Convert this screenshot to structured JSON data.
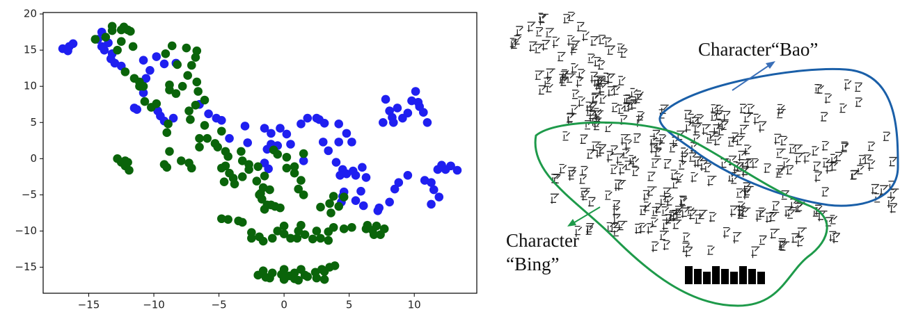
{
  "chart_data": {
    "type": "scatter",
    "xlim": [
      -18.5,
      14.8
    ],
    "ylim": [
      -18.6,
      20.2
    ],
    "xticks": [
      {
        "value": -15,
        "label": "−15"
      },
      {
        "value": -10,
        "label": "−10"
      },
      {
        "value": -5,
        "label": "−5"
      },
      0,
      5,
      10
    ],
    "yticks": [
      {
        "value": -15,
        "label": "−15"
      },
      {
        "value": -10,
        "label": "−10"
      },
      {
        "value": -5,
        "label": "−5"
      },
      0,
      5,
      10,
      15,
      20
    ],
    "series": [
      {
        "color": "#1f1ff0",
        "x": [
          -17,
          -16.5,
          -16.2,
          -16.6,
          -14,
          -14.3,
          -13.5,
          -13.8,
          -13.2,
          -13,
          -12.5,
          -13.3,
          -14,
          -10.8,
          -10.3,
          -10.6,
          -10.8,
          -9.8,
          -9.2,
          -8.3,
          -9.5,
          -9.7,
          -9.2,
          -8.5,
          -11.5,
          -11.3,
          -6.5,
          -5.8,
          -5.2,
          -4.8,
          -3,
          -1.5,
          -1,
          -0.5,
          -0.3,
          0.2,
          0.5,
          1.3,
          1.8,
          2.5,
          2.7,
          3.1,
          4.2,
          4.8,
          5.2,
          4.2,
          -1.3,
          -2.8,
          -1.5,
          -1.2,
          3,
          3.4,
          4,
          4.5,
          4.3,
          4.8,
          5.3,
          5.5,
          6,
          6.3,
          5.9,
          4.6,
          4.5,
          4.4,
          5.5,
          6.1,
          7.2,
          7.3,
          8.1,
          8.5,
          8.8,
          9.5,
          10.8,
          11.3,
          11.5,
          11.9,
          11.3,
          12.1,
          12.4,
          12.8,
          13.3,
          11.8,
          7.8,
          8.1,
          8.7,
          8.3,
          7.6,
          8.4,
          9.1,
          9.8,
          10.1,
          10.3,
          10.7,
          11,
          9.5,
          10.4,
          -1,
          1.5,
          -4.2
        ],
        "y": [
          15.2,
          15.5,
          15.9,
          14.9,
          17.5,
          16.5,
          16,
          15,
          14.5,
          13.2,
          12.8,
          13.8,
          15.5,
          13.6,
          12.2,
          11.1,
          9.1,
          14.1,
          13.1,
          13.2,
          5.9,
          6.6,
          5.2,
          5.6,
          7,
          6.8,
          7.5,
          6.2,
          5.6,
          5.3,
          4.5,
          4.2,
          3.5,
          1.8,
          4.2,
          3.4,
          2,
          4.8,
          5.6,
          5.6,
          5.4,
          4.9,
          4.8,
          3.5,
          2.3,
          2.3,
          1.3,
          2.2,
          -0.6,
          -1.4,
          2.3,
          1.1,
          -0.5,
          -1.5,
          -2.3,
          -2.1,
          -1.7,
          -2.3,
          -1.2,
          -2.6,
          -4.5,
          -4.6,
          -5.2,
          -6,
          -5.8,
          -6.5,
          -7.2,
          -6.8,
          -6,
          -4.2,
          -3.3,
          -2.3,
          -3,
          -3.3,
          -4.3,
          -5.3,
          -6.3,
          -0.9,
          -1.5,
          -1,
          -1.6,
          -1.5,
          8.2,
          6.6,
          7,
          5.7,
          5,
          5,
          5.6,
          8,
          9.3,
          7.8,
          6.4,
          5,
          6.3,
          7.2,
          2,
          -0.3,
          2.8
        ]
      },
      {
        "color": "#0a640a",
        "x": [
          -14.5,
          -13.7,
          -13.2,
          -13.2,
          -12.5,
          -12.3,
          -12,
          -11.8,
          -12.5,
          -11.6,
          -12.8,
          -12.2,
          -11.5,
          -11.1,
          -11.1,
          -10.8,
          -10.7,
          -10.2,
          -9.8,
          -8.8,
          -8.3,
          -8.2,
          -9.1,
          -8.6,
          -7.5,
          -6.7,
          -6.8,
          -7.1,
          -7.4,
          -8.8,
          -7.8,
          -6.7,
          -6.6,
          -6.1,
          -6.8,
          -7.2,
          -7.3,
          -6.1,
          -6.5,
          -5.9,
          -6.5,
          -5.3,
          -4.8,
          -8.9,
          -9,
          -8.8,
          -9.2,
          -9,
          -7.9,
          -7.3,
          -7.1,
          -12.8,
          -12.5,
          -12.2,
          -11.9,
          -12,
          -12.2,
          -5.1,
          -4.5,
          -4.3,
          -4.5,
          -4.8,
          -4.2,
          -3.9,
          -4.6,
          -3.8,
          -3.2,
          -3.2,
          -3.3,
          -2.7,
          -2.7,
          -2,
          -2.1,
          -1.5,
          -1.6,
          -1.8,
          -1.7,
          -1.3,
          -1,
          -1.5,
          -0.7,
          -0.3,
          -1.1,
          -1.9,
          -0.8,
          -0.5,
          0.2,
          0.2,
          0.8,
          0.8,
          1.3,
          1.1,
          1.5,
          1.5,
          -4.8,
          -4.3,
          -3.5,
          -3.2,
          -2.5,
          -2.5,
          -1.9,
          -1.6,
          -0.9,
          -0.5,
          0,
          0,
          0.5,
          1,
          1.1,
          1.3,
          1.6,
          2.2,
          2.5,
          2.8,
          3.4,
          3.4,
          3.8,
          4.6,
          5.2,
          2.8,
          3.5,
          3.6,
          4.2,
          3.8,
          4.6,
          6.3,
          6.4,
          6.8,
          7.1,
          6.9,
          7.4,
          7.7,
          -1.6,
          -2,
          -1.4,
          -1.1,
          -0.9,
          -0.2,
          0,
          0,
          0.4,
          0.8,
          0.8,
          1.1,
          1.3,
          1.6,
          1.8,
          2.4,
          2.5,
          2.9,
          3.1,
          3.1,
          3.5,
          3.9
        ],
        "y": [
          16.5,
          16.8,
          17.7,
          18.3,
          17.8,
          18.2,
          17.8,
          17.6,
          16.2,
          15.5,
          15,
          12,
          11.1,
          10,
          10.6,
          10,
          7.9,
          7.1,
          7.6,
          9.5,
          9,
          13,
          14.5,
          15.6,
          15.3,
          14.9,
          14,
          12.9,
          11.5,
          10.2,
          10,
          10.6,
          9.3,
          8.1,
          7.4,
          5.4,
          6.6,
          4.6,
          2.8,
          2.8,
          1.6,
          2.1,
          3.8,
          4.8,
          3.6,
          1,
          -0.8,
          -1.2,
          -0.3,
          -0.6,
          -1.3,
          0,
          -0.5,
          -1,
          -1.6,
          -0.5,
          -0.3,
          1.6,
          1,
          0.3,
          -1,
          -1.3,
          -2,
          -2.7,
          -3.2,
          -3.5,
          -2.5,
          -0.3,
          1,
          -0.8,
          -1.5,
          -1.1,
          -3.1,
          -2.4,
          -4,
          -4.8,
          -5.6,
          -6.4,
          -6.4,
          -7,
          -6.6,
          -6.8,
          -4.3,
          -5,
          1.2,
          0.6,
          0.2,
          -1.3,
          -2,
          -1.1,
          -3,
          -4.2,
          -5,
          0.7,
          -8.3,
          -8.4,
          -8.6,
          -8.8,
          -10.2,
          -11,
          -10.8,
          -11.4,
          -11,
          -10,
          -9.3,
          -10.4,
          -11,
          -11,
          -10,
          -9.2,
          -10.5,
          -11.1,
          -10,
          -11,
          -11.3,
          -10.1,
          -9.5,
          -9.7,
          -9.5,
          -6.7,
          -6.2,
          -7.5,
          -6.6,
          -5.2,
          -5.3,
          -9.7,
          -9.2,
          -9.9,
          -9.3,
          -10.5,
          -10.5,
          -9.7,
          -15.5,
          -16.1,
          -16.4,
          -16.5,
          -15.8,
          -16,
          -15.3,
          -16.7,
          -16.2,
          -15.8,
          -16.6,
          -16.8,
          -15.3,
          -16.1,
          -16.3,
          -15.7,
          -16.5,
          -15.3,
          -15.6,
          -16.7,
          -15,
          -14.8
        ]
      }
    ]
  },
  "embedding_map": {
    "bao_label": "Character“Bao”",
    "bing_label": [
      "Character",
      "“Bing”"
    ]
  }
}
